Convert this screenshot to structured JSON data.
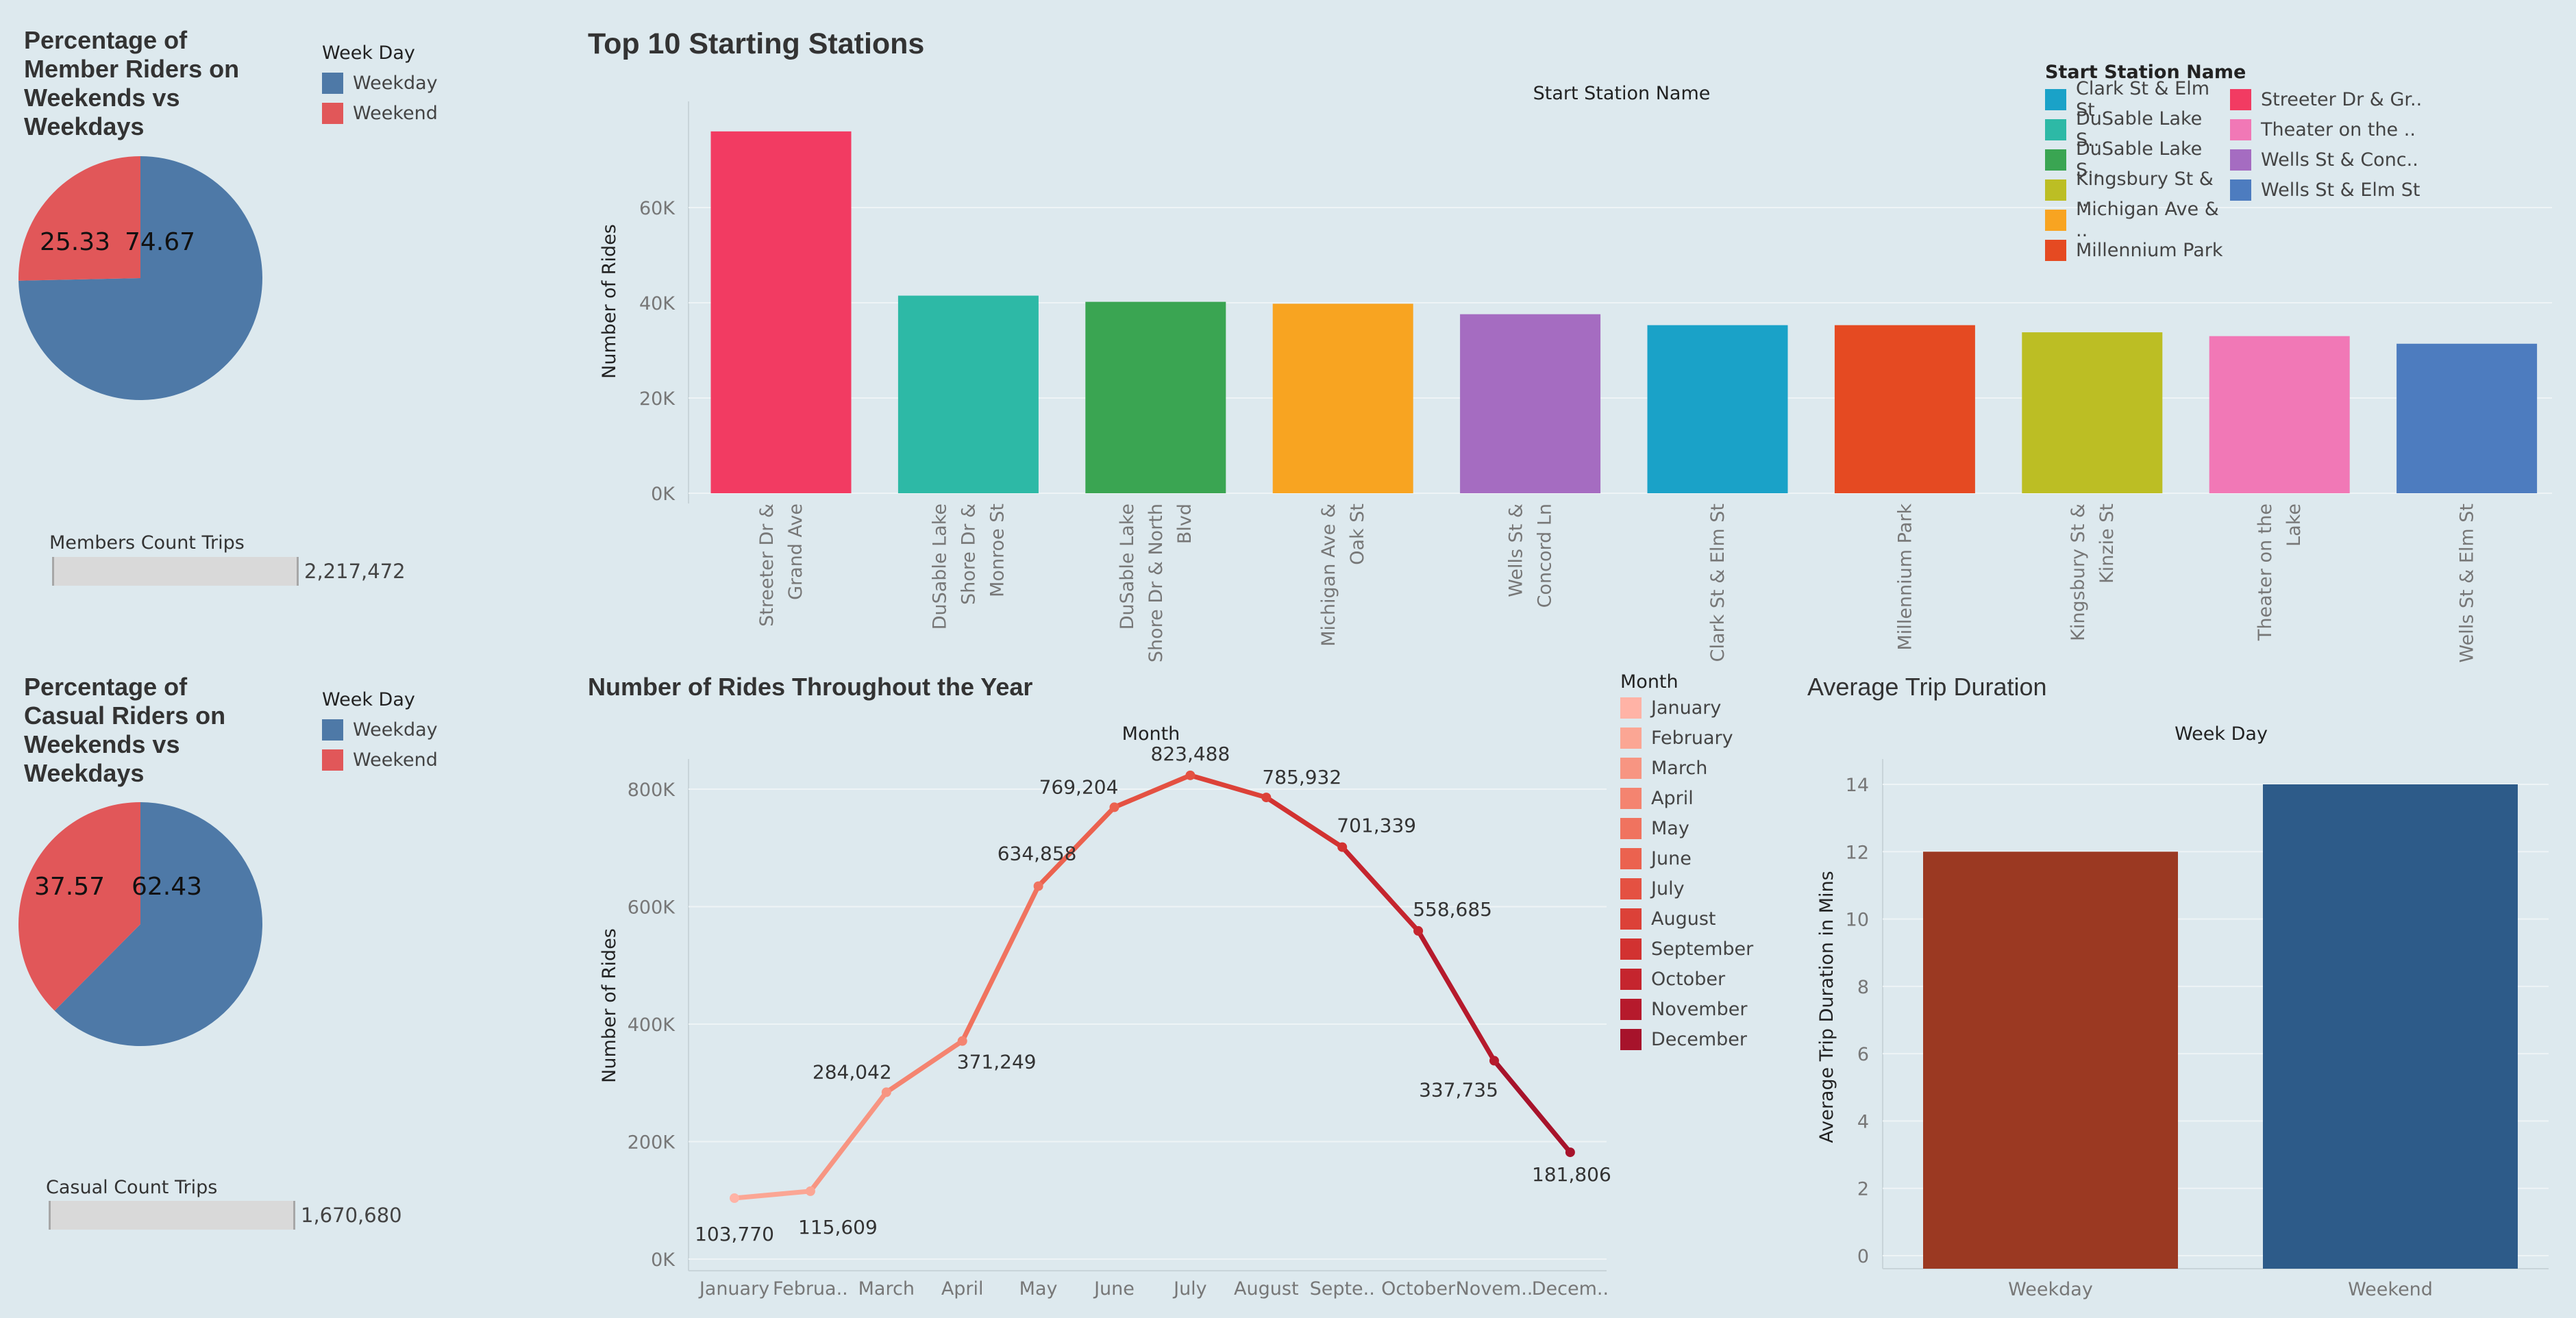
{
  "member_pie": {
    "title": "Percentage of Member Riders on Weekends vs Weekdays",
    "title_lines": [
      "Percentage of",
      "Member Riders on",
      "Weekends vs",
      "Weekdays"
    ],
    "legend_title": "Week Day",
    "legend": [
      "Weekday",
      "Weekend"
    ],
    "count_label": "Members Count Trips",
    "count_value": "2,217,472"
  },
  "casual_pie": {
    "title": "Percentage of Casual Riders on Weekends vs Weekdays",
    "title_lines": [
      "Percentage of",
      "Casual Riders on",
      "Weekends vs",
      "Weekdays"
    ],
    "legend_title": "Week Day",
    "legend": [
      "Weekday",
      "Weekend"
    ],
    "count_label": "Casual Count Trips",
    "count_value": "1,670,680"
  },
  "stations": {
    "title": "Top 10 Starting Stations",
    "legend_title": "Start Station Name",
    "legend_left": [
      "Clark St & Elm St",
      "DuSable Lake S..",
      "DuSable Lake S..",
      "Kingsbury St & ..",
      "Michigan Ave & ..",
      "Millennium Park"
    ],
    "legend_right": [
      "Streeter Dr & Gr..",
      "Theater on the ..",
      "Wells St & Conc..",
      "Wells St & Elm St"
    ]
  },
  "monthly": {
    "title": "Number of Rides Throughout the Year",
    "legend_title": "Month",
    "legend": [
      "January",
      "February",
      "March",
      "April",
      "May",
      "June",
      "July",
      "August",
      "September",
      "October",
      "November",
      "December"
    ]
  },
  "duration": {
    "title": "Average Trip Duration"
  },
  "colors": {
    "weekday": "#4e79a7",
    "weekend": "#e15759",
    "background": "#dde9ee"
  },
  "chart_data": [
    {
      "type": "pie",
      "categories": [
        "Weekday",
        "Weekend"
      ],
      "values": [
        74.67,
        25.33
      ],
      "colors": [
        "#4e79a7",
        "#e15759"
      ]
    },
    {
      "type": "pie",
      "categories": [
        "Weekday",
        "Weekend"
      ],
      "values": [
        62.43,
        37.57
      ],
      "colors": [
        "#4e79a7",
        "#e15759"
      ]
    },
    {
      "type": "bar",
      "title": "Top 10 Starting Stations",
      "xlabel": "Start Station Name",
      "ylabel": "Number of Rides",
      "categories": [
        [
          "Streeter Dr &",
          "Grand Ave"
        ],
        [
          "DuSable Lake",
          "Shore Dr &",
          "Monroe St"
        ],
        [
          "DuSable Lake",
          "Shore Dr & North",
          "Blvd"
        ],
        [
          "Michigan Ave &",
          "Oak St"
        ],
        [
          "Wells St &",
          "Concord Ln"
        ],
        [
          "Clark St & Elm St"
        ],
        [
          "Millennium Park"
        ],
        [
          "Kingsbury St &",
          "Kinzie St"
        ],
        [
          "Theater on the",
          "Lake"
        ],
        [
          "Wells St & Elm St"
        ]
      ],
      "values": [
        76000,
        41500,
        40200,
        39800,
        37600,
        35300,
        35300,
        33800,
        33000,
        31400
      ],
      "colors": [
        "#f23b62",
        "#2db9a6",
        "#3aa552",
        "#f8a421",
        "#a56cc1",
        "#1aa2c8",
        "#e54a22",
        "#bcbe24",
        "#f178b6",
        "#4d7cbf"
      ],
      "ylim": [
        0,
        80000
      ],
      "yticks": [
        0,
        20000,
        40000,
        60000
      ],
      "ytick_labels": [
        "0K",
        "20K",
        "40K",
        "60K"
      ],
      "grid": true
    },
    {
      "type": "line",
      "xlabel": "Month",
      "ylabel": "Number of Rides",
      "x": [
        "January",
        "Februa..",
        "March",
        "April",
        "May",
        "June",
        "July",
        "August",
        "Septe..",
        "October",
        "Novem..",
        "Decem.."
      ],
      "values": [
        103770,
        115609,
        284042,
        371249,
        634858,
        769204,
        823488,
        785932,
        701339,
        558685,
        337735,
        181806
      ],
      "labels": [
        "103,770",
        "115,609",
        "284,042",
        "371,249",
        "634,858",
        "769,204",
        "823,488",
        "785,932",
        "701,339",
        "558,685",
        "337,735",
        "181,806"
      ],
      "colors": [
        "#ffb3a6",
        "#fba694",
        "#f79582",
        "#f48470",
        "#f0735f",
        "#eb624f",
        "#e45142",
        "#dc4138",
        "#d23231",
        "#c5252e",
        "#b61a2c",
        "#a7132b"
      ],
      "ylim": [
        0,
        850000
      ],
      "yticks": [
        0,
        200000,
        400000,
        600000,
        800000
      ],
      "ytick_labels": [
        "0K",
        "200K",
        "400K",
        "600K",
        "800K"
      ],
      "grid": true
    },
    {
      "type": "bar",
      "xlabel": "Week Day",
      "ylabel": "Average Trip Duration in Mins",
      "categories": [
        "Weekday",
        "Weekend"
      ],
      "values": [
        12,
        14
      ],
      "colors": [
        "#9b3922",
        "#2d5b89"
      ],
      "ylim": [
        0,
        14.6
      ],
      "yticks": [
        0,
        2,
        4,
        6,
        8,
        10,
        12,
        14
      ],
      "grid": true
    }
  ]
}
